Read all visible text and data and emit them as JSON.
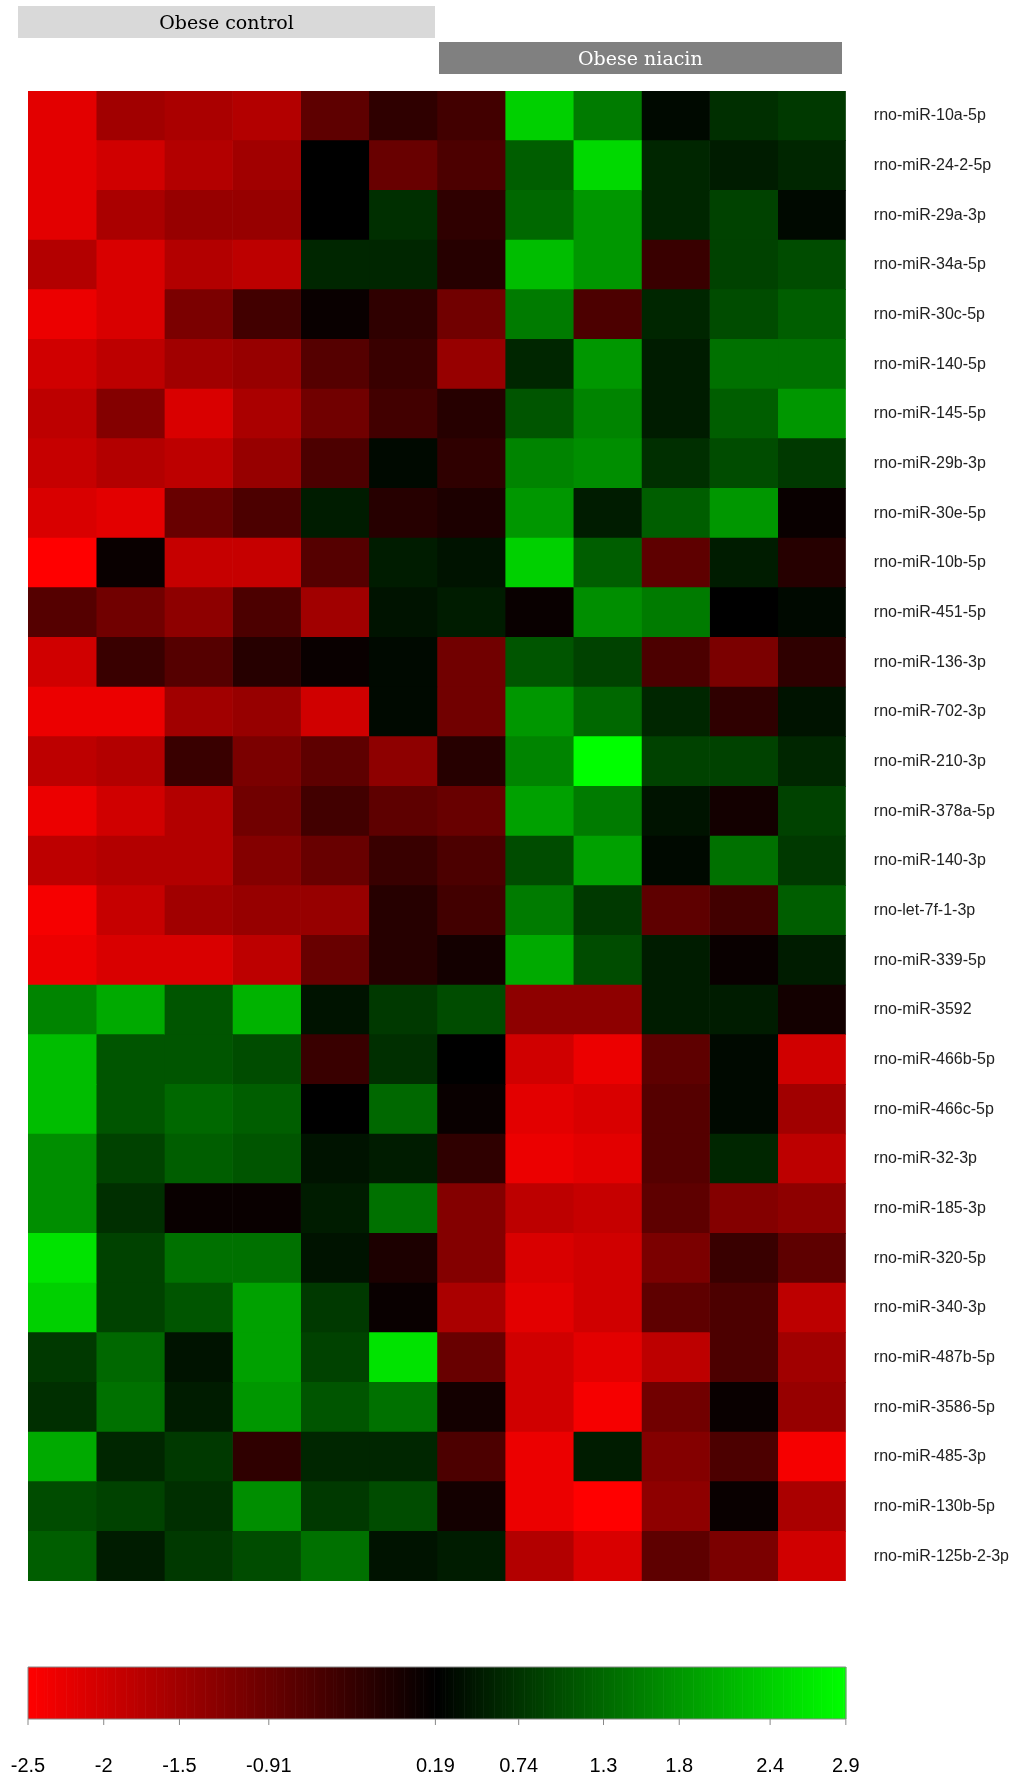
{
  "chart_data": {
    "type": "heatmap",
    "annotations": [
      "Obese control",
      "Obese niacin"
    ],
    "categories": [
      null,
      null,
      null,
      null,
      null,
      null,
      null,
      null,
      null,
      null,
      null,
      null
    ],
    "y_categories": [
      "rno-miR-10a-5p",
      "rno-miR-24-2-5p",
      "rno-miR-29a-3p",
      "rno-miR-34a-5p",
      "rno-miR-30c-5p",
      "rno-miR-140-5p",
      "rno-miR-145-5p",
      "rno-miR-29b-3p",
      "rno-miR-30e-5p",
      "rno-miR-10b-5p",
      "rno-miR-451-5p",
      "rno-miR-136-3p",
      "rno-miR-702-3p",
      "rno-miR-210-3p",
      "rno-miR-378a-5p",
      "rno-miR-140-3p",
      "rno-let-7f-1-3p",
      "rno-miR-339-5p",
      "rno-miR-3592",
      "rno-miR-466b-5p",
      "rno-miR-466c-5p",
      "rno-miR-32-3p",
      "rno-miR-185-3p",
      "rno-miR-320-5p",
      "rno-miR-340-3p",
      "rno-miR-487b-5p",
      "rno-miR-3586-5p",
      "rno-miR-485-3p",
      "rno-miR-130b-5p",
      "rno-miR-125b-2-3p"
    ],
    "cells": [
      [
        -2.2,
        -1.5,
        -1.6,
        -1.7,
        -0.8,
        -0.3,
        -0.5,
        2.4,
        1.5,
        0.3,
        0.7,
        0.8
      ],
      [
        -2.2,
        -2.0,
        -1.7,
        -1.5,
        0.2,
        -0.9,
        -0.6,
        1.2,
        2.5,
        0.6,
        0.5,
        0.6
      ],
      [
        -2.2,
        -1.6,
        -1.4,
        -1.4,
        0.2,
        0.7,
        -0.3,
        1.3,
        1.8,
        0.6,
        0.9,
        0.3
      ],
      [
        -1.7,
        -2.1,
        -1.7,
        -1.8,
        0.6,
        0.6,
        -0.2,
        2.2,
        1.8,
        -0.4,
        0.9,
        1.0
      ],
      [
        -2.3,
        -2.1,
        -1.1,
        -0.5,
        0.1,
        -0.3,
        -1.0,
        1.5,
        -0.6,
        0.6,
        1.0,
        1.2
      ],
      [
        -2.0,
        -1.8,
        -1.5,
        -1.4,
        -0.7,
        -0.4,
        -1.4,
        0.6,
        1.8,
        0.5,
        1.4,
        1.4
      ],
      [
        -1.8,
        -1.2,
        -2.1,
        -1.6,
        -1.0,
        -0.5,
        -0.2,
        1.1,
        1.6,
        0.5,
        1.2,
        1.8
      ],
      [
        -1.9,
        -1.7,
        -1.8,
        -1.4,
        -0.6,
        0.3,
        -0.3,
        1.6,
        1.7,
        0.7,
        1.0,
        0.8
      ],
      [
        -2.1,
        -2.2,
        -0.9,
        -0.6,
        0.5,
        -0.2,
        -0.1,
        1.8,
        0.5,
        1.2,
        1.8,
        0.1
      ],
      [
        -2.5,
        0.1,
        -1.9,
        -1.9,
        -0.7,
        0.5,
        0.4,
        2.4,
        1.2,
        -0.8,
        0.5,
        -0.2
      ],
      [
        -0.7,
        -1.0,
        -1.3,
        -0.6,
        -1.5,
        0.4,
        0.5,
        0.1,
        1.7,
        1.5,
        0.2,
        0.3
      ],
      [
        -2.0,
        -0.4,
        -0.7,
        -0.2,
        0.1,
        0.3,
        -1.0,
        1.1,
        0.9,
        -0.6,
        -1.1,
        -0.3
      ],
      [
        -2.3,
        -2.3,
        -1.5,
        -1.4,
        -2.0,
        0.3,
        -1.0,
        1.8,
        1.3,
        0.6,
        -0.3,
        0.4
      ],
      [
        -1.8,
        -1.7,
        -0.4,
        -1.1,
        -0.8,
        -1.3,
        -0.2,
        1.6,
        2.9,
        0.9,
        0.9,
        0.6
      ],
      [
        -2.3,
        -2.0,
        -1.7,
        -1.0,
        -0.5,
        -0.8,
        -0.9,
        1.9,
        1.5,
        0.4,
        0.0,
        0.9
      ],
      [
        -1.8,
        -1.7,
        -1.7,
        -1.2,
        -0.9,
        -0.4,
        -0.6,
        1.0,
        1.9,
        0.3,
        1.4,
        0.8
      ],
      [
        -2.4,
        -1.9,
        -1.5,
        -1.4,
        -1.4,
        -0.2,
        -0.5,
        1.5,
        0.8,
        -0.8,
        -0.5,
        1.2
      ],
      [
        -2.3,
        -2.1,
        -2.1,
        -1.8,
        -0.9,
        -0.2,
        0.0,
        2.0,
        1.0,
        0.5,
        0.1,
        0.5
      ],
      [
        1.6,
        2.0,
        1.1,
        2.1,
        0.4,
        0.8,
        1.0,
        -1.3,
        -1.3,
        0.5,
        0.5,
        0.0
      ],
      [
        2.2,
        1.1,
        1.1,
        1.0,
        -0.4,
        0.7,
        0.2,
        -2.0,
        -2.3,
        -0.8,
        0.3,
        -2.0
      ],
      [
        2.2,
        1.1,
        1.3,
        1.2,
        0.2,
        1.3,
        0.1,
        -2.2,
        -2.1,
        -0.7,
        0.3,
        -1.5
      ],
      [
        1.7,
        0.9,
        1.2,
        1.1,
        0.4,
        0.5,
        -0.3,
        -2.3,
        -2.2,
        -0.7,
        0.6,
        -1.8
      ],
      [
        1.7,
        0.7,
        0.1,
        0.1,
        0.5,
        1.4,
        -1.2,
        -1.8,
        -1.9,
        -0.8,
        -1.2,
        -1.3
      ],
      [
        2.6,
        0.9,
        1.4,
        1.4,
        0.4,
        -0.1,
        -1.2,
        -2.1,
        -2.0,
        -1.1,
        -0.4,
        -0.8
      ],
      [
        2.4,
        0.9,
        1.1,
        1.9,
        0.8,
        0.1,
        -1.6,
        -2.2,
        -2.0,
        -0.8,
        -0.6,
        -1.8
      ],
      [
        0.8,
        1.3,
        0.4,
        1.9,
        0.9,
        2.6,
        -0.9,
        -2.0,
        -2.2,
        -1.8,
        -0.6,
        -1.5
      ],
      [
        0.7,
        1.4,
        0.5,
        1.8,
        1.1,
        1.4,
        0.0,
        -2.0,
        -2.4,
        -1.0,
        0.1,
        -1.4
      ],
      [
        2.0,
        0.6,
        0.8,
        -0.3,
        0.6,
        0.6,
        -0.6,
        -2.3,
        0.5,
        -1.2,
        -0.6,
        -2.4
      ],
      [
        1.0,
        0.9,
        0.7,
        1.7,
        0.8,
        1.0,
        0.0,
        -2.3,
        -2.5,
        -1.3,
        0.1,
        -1.6
      ],
      [
        1.2,
        0.5,
        0.8,
        1.0,
        1.4,
        0.4,
        0.5,
        -1.7,
        -2.1,
        -0.8,
        -1.1,
        -2.0
      ]
    ],
    "clim": [
      -2.5,
      2.9
    ],
    "cticks": [
      -2.5,
      -2,
      -1.5,
      -0.91,
      0.19,
      0.74,
      1.3,
      1.8,
      2.4,
      2.9
    ],
    "legend": false,
    "grid": false
  }
}
